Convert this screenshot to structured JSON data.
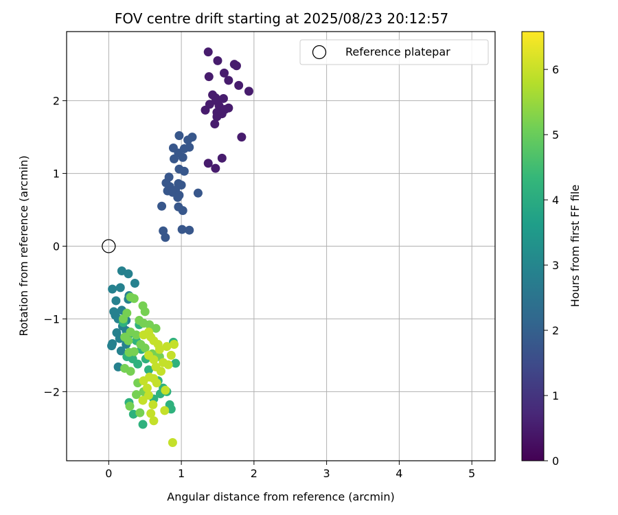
{
  "chart_data": {
    "type": "scatter",
    "title": "FOV centre drift starting at 2025/08/23 20:12:57",
    "xlabel": "Angular distance from reference (arcmin)",
    "ylabel": "Rotation from reference (arcmin)",
    "xlim": [
      -0.58,
      5.32
    ],
    "ylim": [
      -2.95,
      2.95
    ],
    "xticks": [
      0,
      1,
      2,
      3,
      4,
      5
    ],
    "xtick_labels": [
      "0",
      "1",
      "2",
      "3",
      "4",
      "5"
    ],
    "yticks": [
      -2,
      -1,
      0,
      1,
      2
    ],
    "ytick_labels": [
      "−2",
      "−1",
      "0",
      "1",
      "2"
    ],
    "grid": true,
    "legend": {
      "placement": "top-right",
      "entries": [
        {
          "label": "Reference platepar",
          "marker": "open-circle"
        }
      ]
    },
    "reference_point": {
      "x": 0,
      "y": 0
    },
    "colorbar": {
      "label": "Hours from first FF file",
      "min": 0,
      "max": 6.58,
      "ticks": [
        0,
        1,
        2,
        3,
        4,
        5,
        6
      ],
      "tick_labels": [
        "0",
        "1",
        "2",
        "3",
        "4",
        "5",
        "6"
      ],
      "colormap": "viridis"
    },
    "colormap_stops": [
      "#440154",
      "#482878",
      "#3e4989",
      "#31688e",
      "#26828e",
      "#1f9e89",
      "#35b779",
      "#6ece58",
      "#b5de2b",
      "#fde725"
    ],
    "series": [
      {
        "points": [
          [
            1.37,
            2.67
          ],
          [
            1.73,
            2.5
          ],
          [
            1.76,
            2.48
          ],
          [
            1.5,
            2.55
          ],
          [
            1.59,
            2.38
          ],
          [
            1.38,
            2.33
          ],
          [
            1.65,
            2.28
          ],
          [
            1.79,
            2.21
          ],
          [
            1.93,
            2.13
          ],
          [
            1.43,
            2.08
          ],
          [
            1.47,
            2.04
          ],
          [
            1.58,
            2.03
          ],
          [
            1.48,
            2.0
          ],
          [
            1.39,
            1.95
          ],
          [
            1.52,
            1.93
          ],
          [
            1.65,
            1.9
          ],
          [
            1.6,
            1.88
          ],
          [
            1.33,
            1.87
          ],
          [
            1.49,
            1.84
          ],
          [
            1.56,
            1.82
          ],
          [
            1.49,
            1.78
          ],
          [
            1.46,
            1.68
          ],
          [
            1.83,
            1.5
          ],
          [
            1.37,
            1.14
          ],
          [
            1.47,
            1.07
          ],
          [
            1.56,
            1.21
          ]
        ],
        "hours": 0.5
      },
      {
        "points": [
          [
            0.97,
            1.52
          ],
          [
            1.15,
            1.5
          ],
          [
            1.09,
            1.46
          ],
          [
            0.89,
            1.35
          ],
          [
            1.11,
            1.36
          ],
          [
            1.04,
            1.34
          ],
          [
            0.96,
            1.28
          ],
          [
            1.02,
            1.22
          ],
          [
            0.9,
            1.2
          ],
          [
            0.97,
            1.06
          ],
          [
            1.04,
            1.03
          ],
          [
            0.83,
            0.95
          ],
          [
            0.79,
            0.87
          ],
          [
            0.96,
            0.86
          ],
          [
            1.0,
            0.84
          ],
          [
            0.84,
            0.82
          ],
          [
            0.92,
            0.77
          ],
          [
            0.81,
            0.76
          ],
          [
            0.88,
            0.74
          ],
          [
            0.97,
            0.7
          ],
          [
            0.95,
            0.67
          ],
          [
            1.23,
            0.73
          ],
          [
            0.73,
            0.55
          ],
          [
            0.96,
            0.54
          ],
          [
            1.02,
            0.49
          ],
          [
            1.01,
            0.23
          ],
          [
            1.11,
            0.22
          ],
          [
            0.75,
            0.21
          ],
          [
            0.78,
            0.12
          ]
        ],
        "hours": 1.8
      },
      {
        "points": [
          [
            0.18,
            -0.34
          ],
          [
            0.27,
            -0.38
          ],
          [
            0.36,
            -0.51
          ],
          [
            0.05,
            -0.59
          ],
          [
            0.16,
            -0.57
          ],
          [
            0.28,
            -0.68
          ],
          [
            0.1,
            -0.75
          ],
          [
            0.27,
            -0.73
          ],
          [
            0.07,
            -0.9
          ],
          [
            0.18,
            -0.88
          ],
          [
            0.09,
            -0.95
          ],
          [
            0.13,
            -1.0
          ],
          [
            0.24,
            -1.02
          ],
          [
            0.19,
            -1.1
          ],
          [
            0.11,
            -1.19
          ],
          [
            0.24,
            -1.16
          ],
          [
            0.15,
            -1.27
          ],
          [
            0.05,
            -1.34
          ],
          [
            0.04,
            -1.37
          ],
          [
            0.17,
            -1.44
          ],
          [
            0.13,
            -1.66
          ],
          [
            0.24,
            -1.35
          ]
        ],
        "hours": 2.9
      },
      {
        "points": [
          [
            0.2,
            -1.05
          ],
          [
            0.3,
            -1.2
          ],
          [
            0.42,
            -1.08
          ],
          [
            0.38,
            -1.3
          ],
          [
            0.45,
            -1.42
          ],
          [
            0.25,
            -1.52
          ],
          [
            0.33,
            -1.55
          ],
          [
            0.4,
            -1.62
          ],
          [
            0.51,
            -1.55
          ],
          [
            0.55,
            -1.7
          ],
          [
            0.68,
            -1.85
          ],
          [
            0.75,
            -1.95
          ],
          [
            0.71,
            -2.03
          ],
          [
            0.84,
            -2.18
          ],
          [
            0.86,
            -2.24
          ],
          [
            0.89,
            -1.32
          ],
          [
            0.92,
            -1.61
          ],
          [
            0.28,
            -2.15
          ],
          [
            0.34,
            -2.31
          ],
          [
            0.47,
            -2.45
          ],
          [
            0.8,
            -2.0
          ],
          [
            0.62,
            -2.1
          ]
        ],
        "hours": 4.2
      },
      {
        "points": [
          [
            0.3,
            -0.7
          ],
          [
            0.35,
            -0.72
          ],
          [
            0.47,
            -0.82
          ],
          [
            0.5,
            -0.9
          ],
          [
            0.25,
            -0.92
          ],
          [
            0.2,
            -1.0
          ],
          [
            0.42,
            -1.02
          ],
          [
            0.48,
            -1.06
          ],
          [
            0.56,
            -1.08
          ],
          [
            0.65,
            -1.13
          ],
          [
            0.3,
            -1.18
          ],
          [
            0.38,
            -1.22
          ],
          [
            0.27,
            -1.3
          ],
          [
            0.22,
            -1.25
          ],
          [
            0.44,
            -1.35
          ],
          [
            0.5,
            -1.4
          ],
          [
            0.35,
            -1.45
          ],
          [
            0.28,
            -1.46
          ],
          [
            0.6,
            -1.48
          ],
          [
            0.7,
            -1.52
          ],
          [
            0.22,
            -1.68
          ],
          [
            0.3,
            -1.72
          ],
          [
            0.4,
            -1.88
          ],
          [
            0.48,
            -2.0
          ],
          [
            0.38,
            -2.04
          ],
          [
            0.29,
            -2.2
          ],
          [
            0.43,
            -2.29
          ]
        ],
        "hours": 5.2
      },
      {
        "points": [
          [
            0.9,
            -1.35
          ],
          [
            0.55,
            -1.18
          ],
          [
            0.48,
            -1.22
          ],
          [
            0.62,
            -1.3
          ],
          [
            0.68,
            -1.35
          ],
          [
            0.55,
            -1.5
          ],
          [
            0.62,
            -1.56
          ],
          [
            0.75,
            -1.6
          ],
          [
            0.65,
            -1.66
          ],
          [
            0.82,
            -1.63
          ],
          [
            0.72,
            -1.72
          ],
          [
            0.56,
            -1.8
          ],
          [
            0.62,
            -1.82
          ],
          [
            0.48,
            -1.85
          ],
          [
            0.66,
            -1.88
          ],
          [
            0.53,
            -1.95
          ],
          [
            0.78,
            -1.98
          ],
          [
            0.55,
            -2.05
          ],
          [
            0.47,
            -2.12
          ],
          [
            0.61,
            -2.18
          ],
          [
            0.77,
            -2.26
          ],
          [
            0.58,
            -2.3
          ],
          [
            0.62,
            -2.4
          ],
          [
            0.88,
            -2.7
          ],
          [
            0.8,
            -1.38
          ],
          [
            0.86,
            -1.5
          ],
          [
            0.58,
            -1.25
          ],
          [
            0.7,
            -1.42
          ]
        ],
        "hours": 6.0
      }
    ]
  }
}
